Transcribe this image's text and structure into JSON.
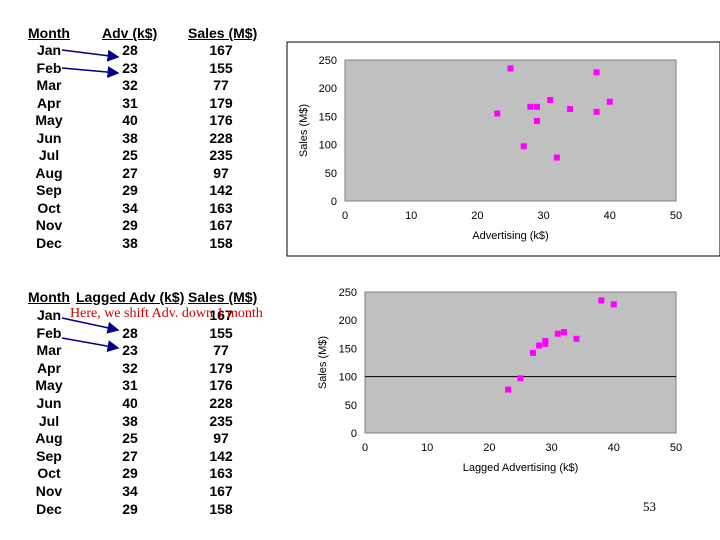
{
  "table1": {
    "headers": [
      "Month",
      "Adv (k$)",
      "Sales (M$)"
    ],
    "rows": [
      [
        "Jan",
        "28",
        "167"
      ],
      [
        "Feb",
        "23",
        "155"
      ],
      [
        "Mar",
        "32",
        "77"
      ],
      [
        "Apr",
        "31",
        "179"
      ],
      [
        "May",
        "40",
        "176"
      ],
      [
        "Jun",
        "38",
        "228"
      ],
      [
        "Jul",
        "25",
        "235"
      ],
      [
        "Aug",
        "27",
        "97"
      ],
      [
        "Sep",
        "29",
        "142"
      ],
      [
        "Oct",
        "34",
        "163"
      ],
      [
        "Nov",
        "29",
        "167"
      ],
      [
        "Dec",
        "38",
        "158"
      ]
    ]
  },
  "table2": {
    "headers": [
      "Month",
      "Lagged Adv (k$)",
      "Sales (M$)"
    ],
    "rows": [
      [
        "Jan",
        "",
        "167"
      ],
      [
        "Feb",
        "28",
        "155"
      ],
      [
        "Mar",
        "23",
        "77"
      ],
      [
        "Apr",
        "32",
        "179"
      ],
      [
        "May",
        "31",
        "176"
      ],
      [
        "Jun",
        "40",
        "228"
      ],
      [
        "Jul",
        "38",
        "235"
      ],
      [
        "Aug",
        "25",
        "97"
      ],
      [
        "Sep",
        "27",
        "142"
      ],
      [
        "Oct",
        "29",
        "163"
      ],
      [
        "Nov",
        "34",
        "167"
      ],
      [
        "Dec",
        "29",
        "158"
      ]
    ]
  },
  "note": "Here, we shift Adv. down 1 month",
  "page_number": "53",
  "colors": {
    "plot_bg": "#c0c0c0",
    "marker": "#ff00ff",
    "note_text": "#cc0000",
    "arrow": "#000080"
  },
  "chart_data": [
    {
      "type": "scatter",
      "xlabel": "Advertising (k$)",
      "ylabel": "Sales (M$)",
      "xlim": [
        0,
        50
      ],
      "ylim": [
        0,
        250
      ],
      "xticks": [
        0,
        10,
        20,
        30,
        40,
        50
      ],
      "yticks": [
        0,
        50,
        100,
        150,
        200,
        250
      ],
      "grid": false,
      "series": [
        {
          "points": [
            [
              28,
              167
            ],
            [
              23,
              155
            ],
            [
              32,
              77
            ],
            [
              31,
              179
            ],
            [
              40,
              176
            ],
            [
              38,
              228
            ],
            [
              25,
              235
            ],
            [
              27,
              97
            ],
            [
              29,
              142
            ],
            [
              34,
              163
            ],
            [
              29,
              167
            ],
            [
              38,
              158
            ]
          ]
        }
      ]
    },
    {
      "type": "scatter",
      "xlabel": "Lagged Advertising (k$)",
      "ylabel": "Sales (M$)",
      "xlim": [
        0,
        50
      ],
      "ylim": [
        0,
        250
      ],
      "xticks": [
        0,
        10,
        20,
        30,
        40,
        50
      ],
      "yticks": [
        0,
        50,
        100,
        150,
        200,
        250
      ],
      "grid": false,
      "series": [
        {
          "points": [
            [
              28,
              155
            ],
            [
              23,
              77
            ],
            [
              32,
              179
            ],
            [
              31,
              176
            ],
            [
              40,
              228
            ],
            [
              38,
              235
            ],
            [
              25,
              97
            ],
            [
              27,
              142
            ],
            [
              29,
              163
            ],
            [
              34,
              167
            ],
            [
              29,
              158
            ]
          ]
        }
      ]
    }
  ]
}
